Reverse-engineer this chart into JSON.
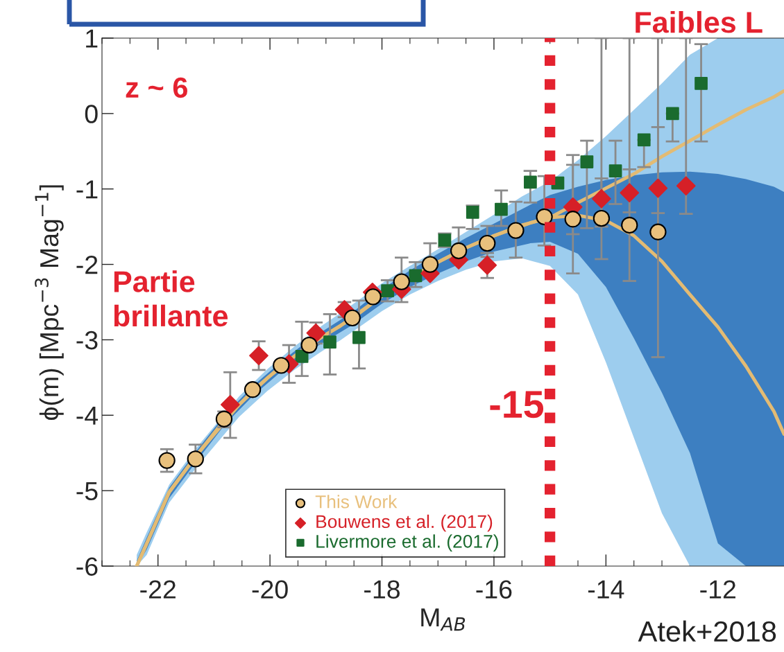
{
  "chart_data": {
    "type": "scatter",
    "xlabel": "M$_{AB}$",
    "ylabel": "ϕ(m) [Mpc$^{−3}$ Mag$^{−1}$]",
    "xlim": [
      -23,
      -10.82
    ],
    "ylim": [
      -6,
      1
    ],
    "xticks": [
      -22,
      -20,
      -18,
      -16,
      -14,
      -12
    ],
    "yticks": [
      -6,
      -5,
      -4,
      -3,
      -2,
      -1,
      0,
      1
    ],
    "grid": false,
    "legend": "bottom",
    "series": [
      {
        "type": "line",
        "color": "#e3bb73",
        "x": [
          -22.38,
          -22.2,
          -21.8,
          -21.3,
          -20.55,
          -20.05,
          -19.55,
          -19.05,
          -18.75,
          -18,
          -17.5,
          -17,
          -16.5,
          -16,
          -15.5,
          -15,
          -14.5,
          -14,
          -13.5,
          -13,
          -12.5,
          -12,
          -11.5,
          -11,
          -10.82
        ],
        "values": [
          -6.0,
          -5.7,
          -5.02,
          -4.52,
          -3.86,
          -3.51,
          -3.21,
          -2.95,
          -2.82,
          -2.42,
          -2.18,
          -1.97,
          -1.78,
          -1.62,
          -1.48,
          -1.38,
          -1.18,
          -0.99,
          -0.8,
          -0.57,
          -0.36,
          -0.15,
          0.05,
          0.22,
          0.3
        ],
        "upper": [
          -5.85,
          -5.55,
          -4.92,
          -4.42,
          -3.75,
          -3.39,
          -3.08,
          -2.8,
          -2.65,
          -2.25,
          -2.02,
          -1.8,
          -1.57,
          -1.34,
          -1.1,
          -0.9,
          -0.62,
          -0.3,
          0.05,
          0.4,
          0.78,
          1.0,
          1.0,
          1.0,
          1.0
        ],
        "lower": [
          -6.0,
          -5.85,
          -5.16,
          -4.68,
          -4.02,
          -3.68,
          -3.39,
          -3.14,
          -3.01,
          -2.62,
          -2.4,
          -2.22,
          -2.07,
          -1.96,
          -1.92,
          -2.02,
          -2.4,
          -3.3,
          -4.3,
          -5.3,
          -6.0,
          -6.0,
          -6.0,
          -6.0,
          -6.0
        ]
      },
      {
        "type": "line",
        "color": "#e3bb73",
        "x": [
          -22.38,
          -22.2,
          -21.8,
          -21.3,
          -20.8,
          -20.3,
          -19.8,
          -19.3,
          -18.5,
          -18,
          -17.5,
          -17,
          -16.5,
          -16,
          -15.35,
          -15,
          -14.5,
          -14,
          -13.5,
          -13,
          -12.5,
          -12,
          -11.5,
          -11,
          -10.82
        ],
        "values": [
          -6.0,
          -5.7,
          -5.02,
          -4.52,
          -4.05,
          -3.67,
          -3.35,
          -3.07,
          -2.7,
          -2.42,
          -2.18,
          -1.97,
          -1.78,
          -1.62,
          -1.45,
          -1.38,
          -1.35,
          -1.42,
          -1.62,
          -1.96,
          -2.4,
          -2.83,
          -3.35,
          -3.95,
          -4.25
        ],
        "upper": [
          -5.93,
          -5.62,
          -4.96,
          -4.46,
          -3.99,
          -3.61,
          -3.29,
          -3.0,
          -2.62,
          -2.33,
          -2.08,
          -1.86,
          -1.65,
          -1.46,
          -1.21,
          -1.08,
          -0.97,
          -0.88,
          -0.82,
          -0.78,
          -0.77,
          -0.8,
          -0.87,
          -0.97,
          -1.04
        ],
        "lower": [
          -6.0,
          -5.78,
          -5.1,
          -4.6,
          -4.12,
          -3.74,
          -3.42,
          -3.15,
          -2.79,
          -2.52,
          -2.3,
          -2.12,
          -1.96,
          -1.83,
          -1.72,
          -1.7,
          -1.86,
          -2.3,
          -2.98,
          -3.7,
          -4.5,
          -5.7,
          -6.0,
          -6.0,
          -6.0
        ]
      },
      {
        "name": "This Work",
        "color": "#e8c07d",
        "marker": "circle",
        "x": [
          -21.84,
          -21.33,
          -20.82,
          -20.31,
          -19.8,
          -19.3,
          -18.53,
          -18.16,
          -17.65,
          -17.14,
          -16.63,
          -16.12,
          -15.61,
          -15.1,
          -14.59,
          -14.08,
          -13.58,
          -13.07
        ],
        "values": [
          -4.6,
          -4.58,
          -4.05,
          -3.66,
          -3.34,
          -3.07,
          -2.71,
          -2.43,
          -2.23,
          -2.0,
          -1.82,
          -1.72,
          -1.55,
          -1.37,
          -1.4,
          -1.39,
          -1.48,
          -1.57
        ],
        "errors": [
          [
            -4.75,
            -4.45
          ],
          [
            -4.77,
            -4.39
          ],
          [
            -4.16,
            -3.95
          ],
          null,
          null,
          null,
          null,
          null,
          [
            -2.5,
            -1.91
          ],
          [
            -2.0,
            -1.72
          ],
          [
            -1.82,
            -1.51
          ],
          [
            -1.9,
            -1.49
          ],
          [
            -1.91,
            -1.17
          ],
          [
            -1.75,
            -0.83
          ],
          [
            -2.12,
            -0.55
          ],
          [
            -1.93,
            -0.86
          ],
          [
            -2.22,
            -0.74
          ],
          [
            -3.23,
            -0.18
          ]
        ]
      },
      {
        "name": "Bouwens et al. (2017)",
        "color": "#d62027",
        "marker": "diamond",
        "x": [
          -20.71,
          -20.2,
          -19.66,
          -19.18,
          -18.67,
          -18.17,
          -17.65,
          -17.14,
          -16.63,
          -16.12,
          -14.59,
          -14.08,
          -13.58,
          -13.07,
          -12.57
        ],
        "values": [
          -3.86,
          -3.21,
          -3.32,
          -2.91,
          -2.6,
          -2.37,
          -2.33,
          -2.12,
          -1.94,
          -2.01,
          -1.24,
          -1.13,
          -1.05,
          -0.99,
          -0.96
        ],
        "errors": [
          [
            -4.3,
            -3.43
          ],
          [
            -3.4,
            -3.02
          ],
          [
            -3.57,
            -3.07
          ],
          [
            -3.05,
            -2.77
          ],
          [
            -2.7,
            -2.5
          ],
          null,
          null,
          null,
          null,
          [
            -2.18,
            -1.85
          ],
          [
            -1.6,
            -0.68
          ],
          [
            -1.5,
            1.0
          ],
          [
            -1.31,
            1.0
          ],
          [
            -1.32,
            1.0
          ],
          [
            -1.33,
            1.0
          ]
        ]
      },
      {
        "name": "Livermore et al. (2017)",
        "color": "#1a6b2e",
        "marker": "square",
        "x": [
          -19.43,
          -18.93,
          -18.41,
          -17.9,
          -17.4,
          -16.88,
          -16.38,
          -15.87,
          -15.35,
          -14.86,
          -14.34,
          -13.83,
          -13.32,
          -12.81,
          -12.3
        ],
        "values": [
          -3.22,
          -3.03,
          -2.97,
          -2.35,
          -2.15,
          -1.68,
          -1.31,
          -1.27,
          -0.91,
          -0.92,
          -0.64,
          -0.76,
          -0.35,
          0.0,
          0.4
        ],
        "errors": [
          [
            -3.48,
            -2.76
          ],
          [
            -3.46,
            -2.66
          ],
          [
            -3.38,
            -2.48
          ],
          [
            -2.49,
            -2.21
          ],
          [
            -2.3,
            -1.97
          ],
          [
            -1.77,
            -1.59
          ],
          [
            -1.53,
            -1.22
          ],
          [
            -1.49,
            -1.02
          ],
          [
            -1.18,
            -0.76
          ],
          null,
          [
            -1.52,
            -0.36
          ],
          [
            -1.2,
            -0.36
          ],
          [
            -0.71,
            -0.35
          ],
          [
            -0.37,
            0.0
          ],
          [
            -0.37,
            0.92
          ]
        ]
      }
    ],
    "ref_lines": [
      {
        "axis": "x",
        "value": -15,
        "label": "-15",
        "color": "#e4222f",
        "line_style": "dotted"
      }
    ],
    "annotations": [
      "z ~ 6",
      "Partie\nbrillante",
      "Faibles L",
      "Atek+2018"
    ]
  }
}
